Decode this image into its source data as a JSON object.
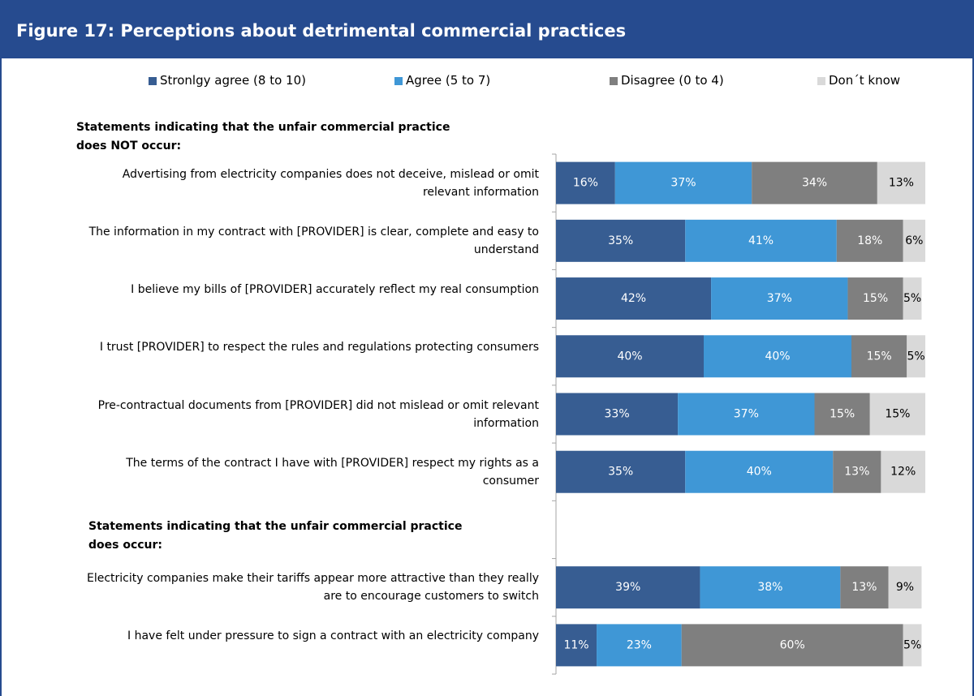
{
  "chart_data": {
    "type": "stacked-bar-horizontal",
    "title": "Figure 17: Perceptions about detrimental commercial practices",
    "group_labels": [
      "Statements indicating that the unfair commercial practice does NOT occur:",
      "Statements indicating that the unfair commercial practice does occur:"
    ],
    "categories": [
      "Advertising from electricity companies does not deceive, mislead or omit relevant information",
      "The information in my contract with [PROVIDER] is clear, complete and easy to understand",
      "I believe my bills of [PROVIDER] accurately reflect my real consumption",
      "I trust [PROVIDER] to respect the rules and regulations protecting consumers",
      "Pre-contractual documents from [PROVIDER] did not mislead or omit relevant information",
      "The terms of the contract I have with [PROVIDER] respect my rights as a consumer",
      null,
      "Electricity companies make their tariffs appear more attractive than they really are to encourage customers to switch",
      "I have felt under pressure to sign a contract with an electricity company"
    ],
    "series": [
      {
        "name": "Stronlgy agree (8 to 10)",
        "color": "#375d92",
        "values": [
          16,
          35,
          42,
          40,
          33,
          35,
          null,
          39,
          11
        ],
        "value_labels": [
          "16%",
          "35%",
          "42%",
          "40%",
          "33%",
          "35%",
          null,
          "39%",
          "11%"
        ]
      },
      {
        "name": "Agree (5 to 7)",
        "color": "#3f97d6",
        "values": [
          37,
          41,
          37,
          40,
          37,
          40,
          null,
          38,
          23
        ],
        "value_labels": [
          "37%",
          "41%",
          "37%",
          "40%",
          "37%",
          "40%",
          null,
          "38%",
          "23%"
        ]
      },
      {
        "name": "Disagree (0 to 4)",
        "color": "#7f7f7f",
        "values": [
          34,
          18,
          15,
          15,
          15,
          13,
          null,
          13,
          60
        ],
        "value_labels": [
          "34%",
          "18%",
          "15%",
          "15%",
          "15%",
          "13%",
          null,
          "13%",
          "60%"
        ]
      },
      {
        "name": "Don´t know",
        "color": "#d9d9d9",
        "values": [
          13,
          6,
          5,
          5,
          15,
          12,
          null,
          9,
          5
        ],
        "value_labels": [
          "13%",
          "6%",
          "5%",
          "5%",
          "15%",
          "12%",
          null,
          "9%",
          "5%"
        ]
      }
    ],
    "xlim": [
      0,
      100
    ],
    "legend": "top"
  }
}
